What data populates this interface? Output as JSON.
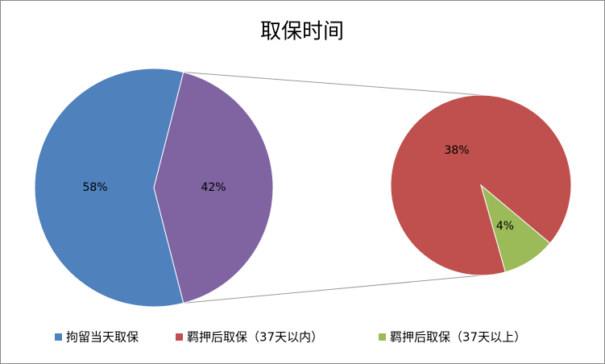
{
  "chart_data": {
    "type": "pie-of-pie",
    "title": "取保时间",
    "categories": [
      "拘留当天取保",
      "羁押后取保（37天以内）",
      "羁押后取保（37天以上）"
    ],
    "values": [
      58,
      38,
      4
    ],
    "value_labels": [
      "58%",
      "38%",
      "4%"
    ],
    "colors": [
      "#4f81bd",
      "#c0504d",
      "#9bbb59"
    ],
    "other_value": 42,
    "other_label": "42%",
    "other_color": "#8064a2",
    "legend": "bottom"
  }
}
